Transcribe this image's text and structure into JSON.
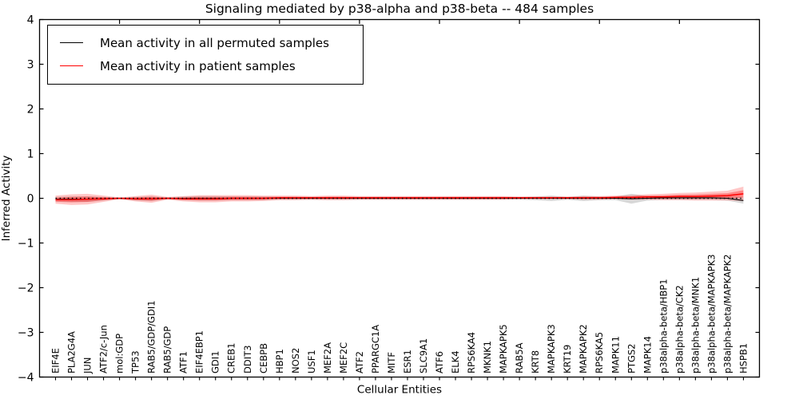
{
  "figure": {
    "background": "#ffffff"
  },
  "chart_data": {
    "type": "line",
    "title": "Signaling mediated by p38-alpha and p38-beta -- 484 samples",
    "xlabel": "Cellular Entities",
    "ylabel": "Inferred Activity",
    "ylim": [
      -4,
      4
    ],
    "ytick_values": [
      4,
      3,
      2,
      1,
      0,
      -1,
      -2,
      -3,
      -4
    ],
    "ytick_labels": [
      "4",
      "3",
      "2",
      "1",
      "0",
      "−1",
      "−2",
      "−3",
      "−4"
    ],
    "x_major_tick_every": 5,
    "grid": false,
    "legend_position": "upper left",
    "zero_line_value": 0,
    "categories": [
      "EIF4E",
      "PLA2G4A",
      "JUN",
      "ATF2/c-Jun",
      "mol:GDP",
      "TP53",
      "RAB5/GDP/GDI1",
      "RAB5/GDP",
      "ATF1",
      "EIF4EBP1",
      "GDI1",
      "CREB1",
      "DDIT3",
      "CEBPB",
      "HBP1",
      "NOS2",
      "USF1",
      "MEF2A",
      "MEF2C",
      "ATF2",
      "PPARGC1A",
      "MITF",
      "ESR1",
      "SLC9A1",
      "ATF6",
      "ELK4",
      "RPS6KA4",
      "MKNK1",
      "MAPKAPK5",
      "RAB5A",
      "KRT8",
      "MAPKAPK3",
      "KRT19",
      "MAPKAPK2",
      "RPS6KA5",
      "MAPK11",
      "PTGS2",
      "MAPK14",
      "p38alpha-beta/HBP1",
      "p38alpha-beta/CK2",
      "p38alpha-beta/MNK1",
      "p38alpha-beta/MAPKAPK3",
      "p38alpha-beta/MAPKAPK2",
      "HSPB1"
    ],
    "series": [
      {
        "name": "Mean activity in all permuted samples",
        "color": "#000000",
        "line_style": "solid",
        "band_color": "#888888",
        "values": [
          -0.02,
          -0.02,
          -0.02,
          -0.01,
          0,
          -0.01,
          -0.01,
          0,
          0,
          0,
          0,
          0,
          0,
          0,
          0,
          0,
          0,
          0,
          0,
          0,
          0,
          0,
          0,
          0,
          0,
          0,
          0,
          0,
          0,
          0,
          0,
          0,
          0,
          0,
          0,
          0,
          -0.01,
          0,
          0.01,
          0.01,
          0.01,
          0.01,
          0,
          -0.05
        ],
        "band_halfwidth": [
          0.05,
          0.06,
          0.06,
          0.04,
          0.015,
          0.04,
          0.05,
          0.02,
          0.04,
          0.05,
          0.05,
          0.04,
          0.04,
          0.04,
          0.03,
          0.03,
          0.03,
          0.03,
          0.03,
          0.03,
          0.03,
          0.03,
          0.03,
          0.03,
          0.03,
          0.03,
          0.03,
          0.03,
          0.03,
          0.03,
          0.04,
          0.06,
          0.03,
          0.06,
          0.04,
          0.04,
          0.11,
          0.05,
          0.04,
          0.04,
          0.04,
          0.04,
          0.05,
          0.07
        ]
      },
      {
        "name": "Mean activity in patient samples",
        "color": "#ff0000",
        "line_style": "solid",
        "band_color": "#ff0000",
        "values": [
          -0.03,
          -0.03,
          -0.02,
          -0.01,
          0,
          -0.01,
          -0.01,
          0,
          -0.01,
          -0.01,
          -0.01,
          0,
          0,
          0,
          0.01,
          0.01,
          0.01,
          0.01,
          0.01,
          0.01,
          0.01,
          0.01,
          0.01,
          0.01,
          0.01,
          0.01,
          0.01,
          0.01,
          0.01,
          0.01,
          0.01,
          0.01,
          0.01,
          0.01,
          0.01,
          0.02,
          0.02,
          0.03,
          0.03,
          0.04,
          0.04,
          0.05,
          0.06,
          0.1
        ],
        "band_halfwidth": [
          0.09,
          0.12,
          0.12,
          0.07,
          0.02,
          0.06,
          0.09,
          0.03,
          0.06,
          0.08,
          0.08,
          0.07,
          0.07,
          0.06,
          0.05,
          0.05,
          0.04,
          0.05,
          0.05,
          0.04,
          0.04,
          0.04,
          0.04,
          0.04,
          0.04,
          0.04,
          0.04,
          0.04,
          0.04,
          0.03,
          0.03,
          0.03,
          0.03,
          0.04,
          0.04,
          0.04,
          0.05,
          0.06,
          0.07,
          0.08,
          0.09,
          0.1,
          0.11,
          0.16
        ]
      }
    ]
  }
}
